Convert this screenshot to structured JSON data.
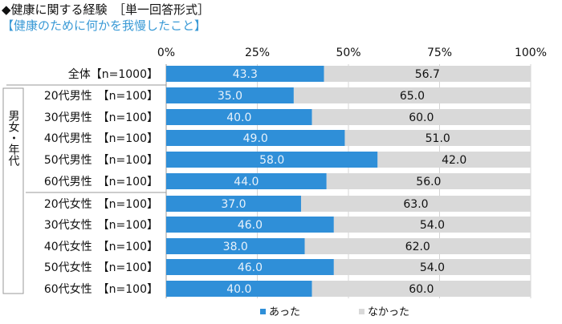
{
  "header": {
    "title": "◆健康に関する経験　［単一回答形式］",
    "subtitle": "【健康のために何かを我慢したこと】"
  },
  "chart_data": {
    "type": "bar",
    "orientation": "horizontal",
    "stacked": "100%",
    "x_ticks": [
      "0%",
      "25%",
      "50%",
      "75%",
      "100%"
    ],
    "xlim": [
      0,
      100
    ],
    "grid": true,
    "legend_position": "bottom",
    "group_label": "男女・年代",
    "categories": [
      "全体【n=1000】",
      "20代男性　【n=100】",
      "30代男性　【n=100】",
      "40代男性　【n=100】",
      "50代男性　【n=100】",
      "60代男性　【n=100】",
      "20代女性　【n=100】",
      "30代女性　【n=100】",
      "40代女性　【n=100】",
      "50代女性　【n=100】",
      "60代女性　【n=100】"
    ],
    "series": [
      {
        "name": "あった",
        "color": "#2f8fd8",
        "labels": [
          "43.3",
          "35.0",
          "40.0",
          "49.0",
          "58.0",
          "44.0",
          "37.0",
          "46.0",
          "38.0",
          "46.0",
          "40.0"
        ],
        "values": [
          43.3,
          35.0,
          40.0,
          49.0,
          58.0,
          44.0,
          37.0,
          46.0,
          38.0,
          46.0,
          40.0
        ]
      },
      {
        "name": "なかった",
        "color": "#d9d9d9",
        "labels": [
          "56.7",
          "65.0",
          "60.0",
          "51.0",
          "42.0",
          "56.0",
          "63.0",
          "54.0",
          "62.0",
          "54.0",
          "60.0"
        ],
        "values": [
          56.7,
          65.0,
          60.0,
          51.0,
          42.0,
          56.0,
          63.0,
          54.0,
          62.0,
          54.0,
          60.0
        ]
      }
    ]
  }
}
